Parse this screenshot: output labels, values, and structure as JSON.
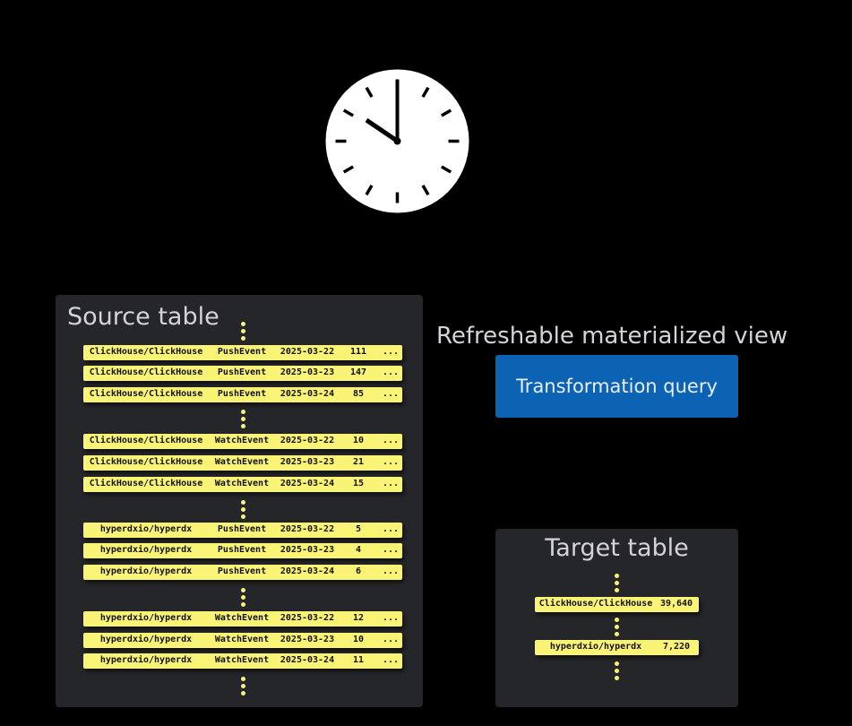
{
  "source_table": {
    "title": "Source table",
    "rows": [
      [
        "ClickHouse/ClickHouse",
        "PushEvent",
        "2025-03-22",
        "111",
        "..."
      ],
      [
        "ClickHouse/ClickHouse",
        "PushEvent",
        "2025-03-23",
        "147",
        "..."
      ],
      [
        "ClickHouse/ClickHouse",
        "PushEvent",
        "2025-03-24",
        "85",
        "..."
      ],
      [
        "ClickHouse/ClickHouse",
        "WatchEvent",
        "2025-03-22",
        "10",
        "..."
      ],
      [
        "ClickHouse/ClickHouse",
        "WatchEvent",
        "2025-03-23",
        "21",
        "..."
      ],
      [
        "ClickHouse/ClickHouse",
        "WatchEvent",
        "2025-03-24",
        "15",
        "..."
      ],
      [
        "hyperdxio/hyperdx",
        "PushEvent",
        "2025-03-22",
        "5",
        "..."
      ],
      [
        "hyperdxio/hyperdx",
        "PushEvent",
        "2025-03-23",
        "4",
        "..."
      ],
      [
        "hyperdxio/hyperdx",
        "PushEvent",
        "2025-03-24",
        "6",
        "..."
      ],
      [
        "hyperdxio/hyperdx",
        "WatchEvent",
        "2025-03-22",
        "12",
        "..."
      ],
      [
        "hyperdxio/hyperdx",
        "WatchEvent",
        "2025-03-23",
        "10",
        "..."
      ],
      [
        "hyperdxio/hyperdx",
        "WatchEvent",
        "2025-03-24",
        "11",
        "..."
      ]
    ]
  },
  "view": {
    "label": "Refreshable materialized view",
    "query_label": "Transformation query"
  },
  "target_table": {
    "title": "Target table",
    "rows": [
      [
        "ClickHouse/ClickHouse",
        "39,640"
      ],
      [
        "hyperdxio/hyperdx",
        "7,220"
      ]
    ]
  },
  "clock": {
    "icon": "clock-icon",
    "time": "10:00"
  },
  "colors": {
    "row": "#faf476",
    "query": "#0c63b4",
    "panel": "#25262a"
  }
}
